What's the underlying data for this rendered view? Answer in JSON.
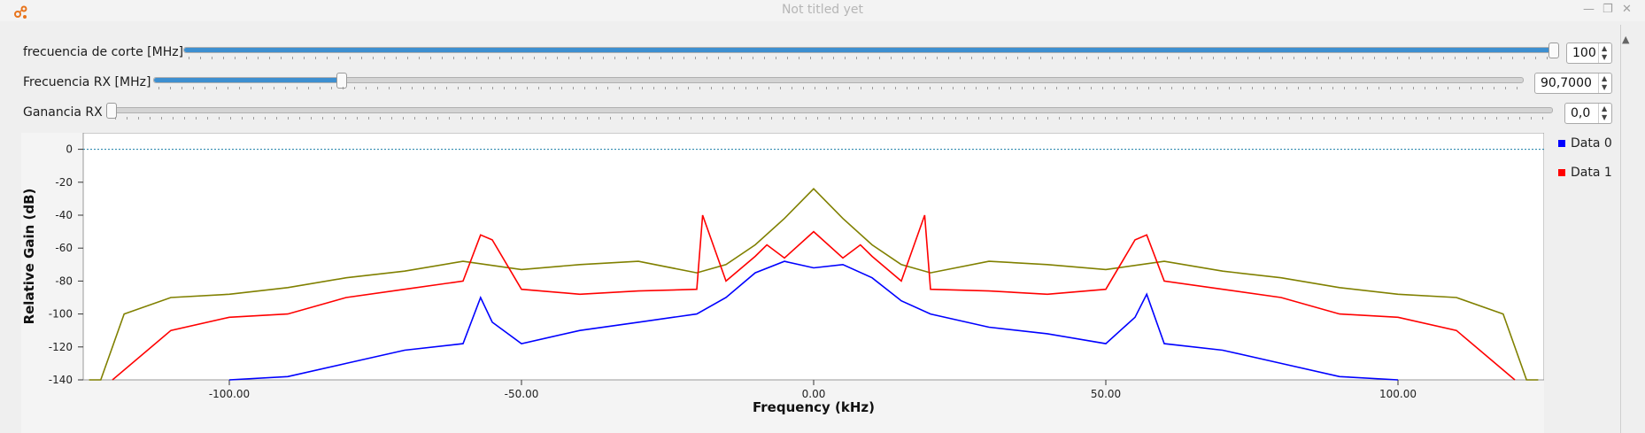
{
  "window": {
    "title": "Not titled yet",
    "app_icon": "gnuradio-logo-icon"
  },
  "controls": {
    "cutoff": {
      "label": "frecuencia de corte [MHz]",
      "value": "100",
      "fraction": 1.0
    },
    "rx_freq": {
      "label": "Frecuencia RX [MHz]",
      "value": "90,7000",
      "fraction": 0.136
    },
    "gain": {
      "label": "Ganancia RX",
      "value": "0,0",
      "fraction": 0.0
    }
  },
  "chart_data": {
    "type": "line",
    "xlabel": "Frequency (kHz)",
    "ylabel": "Relative Gain (dB)",
    "xlim": [
      -125,
      125
    ],
    "ylim": [
      -140,
      10
    ],
    "x_ticks": [
      "-100.00",
      "-50.00",
      "0.00",
      "50.00",
      "100.00"
    ],
    "x_tick_values": [
      -100,
      -50,
      0,
      50,
      100
    ],
    "y_ticks": [
      "0",
      "-20",
      "-40",
      "-60",
      "-80",
      "-100",
      "-120",
      "-140"
    ],
    "y_tick_values": [
      0,
      -20,
      -40,
      -60,
      -80,
      -100,
      -120,
      -140
    ],
    "reference_line_y": 0,
    "series": [
      {
        "name": "Data 0",
        "color": "#0000ff",
        "x": [
          -100,
          -90,
          -80,
          -70,
          -60,
          -57,
          -55,
          -50,
          -40,
          -30,
          -20,
          -15,
          -10,
          -5,
          0,
          5,
          10,
          15,
          20,
          30,
          40,
          50,
          55,
          57,
          60,
          70,
          80,
          90,
          100
        ],
        "y": [
          -140,
          -138,
          -130,
          -122,
          -118,
          -90,
          -105,
          -118,
          -110,
          -105,
          -100,
          -90,
          -75,
          -68,
          -72,
          -70,
          -78,
          -92,
          -100,
          -108,
          -112,
          -118,
          -102,
          -88,
          -118,
          -122,
          -130,
          -138,
          -140
        ]
      },
      {
        "name": "Data 1",
        "color": "#ff0000",
        "x": [
          -120,
          -110,
          -100,
          -90,
          -80,
          -70,
          -60,
          -57,
          -55,
          -50,
          -40,
          -30,
          -20,
          -19,
          -15,
          -10,
          -8,
          -5,
          0,
          5,
          8,
          10,
          15,
          19,
          20,
          30,
          40,
          50,
          55,
          57,
          60,
          70,
          80,
          90,
          100,
          110,
          120
        ],
        "y": [
          -140,
          -110,
          -102,
          -100,
          -90,
          -85,
          -80,
          -52,
          -55,
          -85,
          -88,
          -86,
          -85,
          -40,
          -80,
          -65,
          -58,
          -66,
          -50,
          -66,
          -58,
          -65,
          -80,
          -40,
          -85,
          -86,
          -88,
          -85,
          -55,
          -52,
          -80,
          -85,
          -90,
          -100,
          -102,
          -110,
          -140
        ]
      },
      {
        "name": "",
        "color": "#808000",
        "x": [
          -124,
          -122,
          -118,
          -110,
          -100,
          -90,
          -80,
          -70,
          -60,
          -50,
          -40,
          -30,
          -20,
          -15,
          -10,
          -5,
          0,
          5,
          10,
          15,
          20,
          30,
          40,
          50,
          60,
          70,
          80,
          90,
          100,
          110,
          118,
          122,
          124
        ],
        "y": [
          -140,
          -140,
          -100,
          -90,
          -88,
          -84,
          -78,
          -74,
          -68,
          -73,
          -70,
          -68,
          -75,
          -70,
          -58,
          -42,
          -24,
          -42,
          -58,
          -70,
          -75,
          -68,
          -70,
          -73,
          -68,
          -74,
          -78,
          -84,
          -88,
          -90,
          -100,
          -140,
          -140
        ]
      }
    ]
  }
}
